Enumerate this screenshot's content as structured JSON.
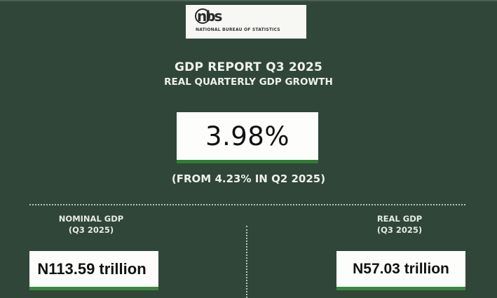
{
  "header": {
    "logo_mark": "nbs",
    "logo_text": "NATIONAL BUREAU OF STATISTICS",
    "title": "GDP REPORT Q3 2025",
    "subtitle": "REAL QUARTERLY GDP GROWTH"
  },
  "growth": {
    "value": "3.98%",
    "comparison": "(FROM 4.23% IN Q2 2025)"
  },
  "nominal_gdp": {
    "label": "NOMINAL GDP",
    "period": "(Q3 2025)",
    "value": "N113.59 trillion"
  },
  "real_gdp": {
    "label": "REAL GDP",
    "period": "(Q3 2025)",
    "value": "N57.03 trillion"
  },
  "colors": {
    "background": "#2f4638",
    "accent_green": "#2e7d32",
    "box_white": "#fdfdfc"
  }
}
